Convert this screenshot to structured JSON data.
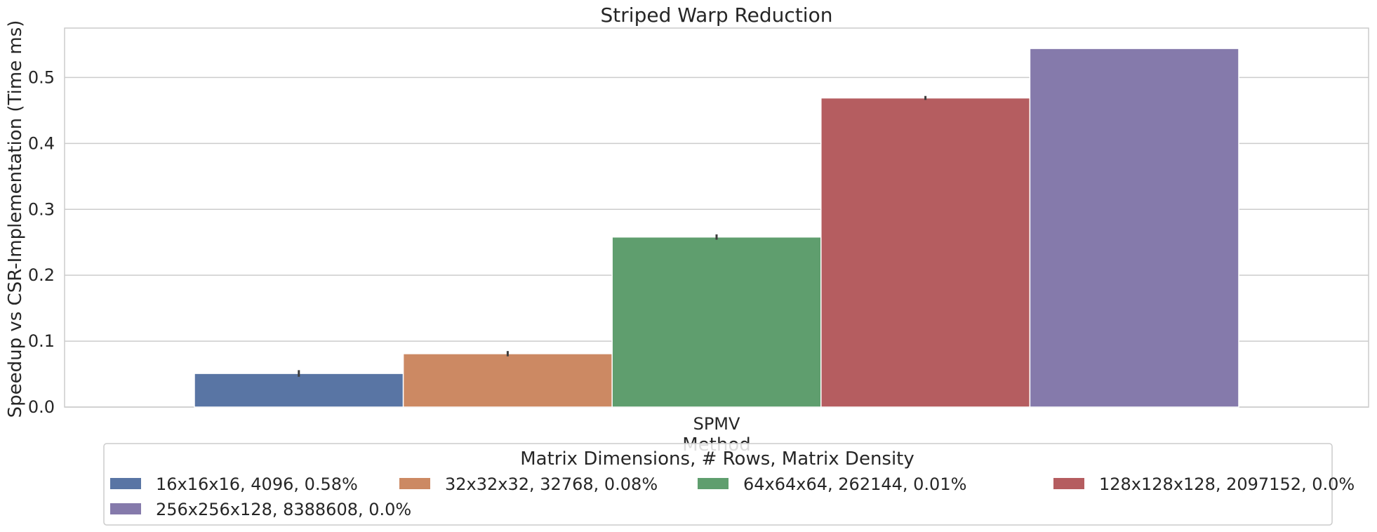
{
  "chart_data": {
    "type": "bar",
    "title": "Striped Warp Reduction",
    "xlabel": "Method",
    "ylabel": "Speedup vs CSR-Implementation (Time ms)",
    "categories": [
      "SPMV"
    ],
    "ylim": [
      0,
      0.575
    ],
    "yticks": [
      "0.0",
      "0.1",
      "0.2",
      "0.3",
      "0.4",
      "0.5"
    ],
    "grid": true,
    "legend_title": "Matrix Dimensions, # Rows, Matrix Density",
    "legend_position": "bottom-center",
    "series": [
      {
        "name": "16x16x16, 4096, 0.58%",
        "values": [
          0.051
        ],
        "err": [
          0.005
        ],
        "color": "#5975a4"
      },
      {
        "name": "32x32x32, 32768, 0.08%",
        "values": [
          0.081
        ],
        "err": [
          0.004
        ],
        "color": "#cc8963"
      },
      {
        "name": "64x64x64, 262144, 0.01%",
        "values": [
          0.258
        ],
        "err": [
          0.004
        ],
        "color": "#5f9e6e"
      },
      {
        "name": "128x128x128, 2097152, 0.0%",
        "values": [
          0.469
        ],
        "err": [
          0.003
        ],
        "color": "#b55d60"
      },
      {
        "name": "256x256x128, 8388608, 0.0%",
        "values": [
          0.544
        ],
        "err": [
          0.0
        ],
        "color": "#857aab"
      }
    ]
  }
}
